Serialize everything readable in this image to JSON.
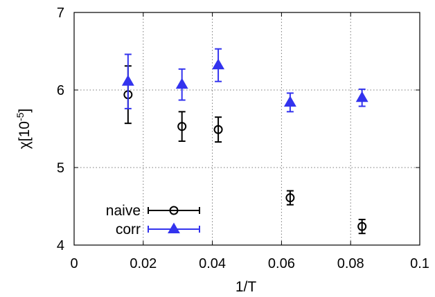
{
  "chart_data": {
    "type": "scatter",
    "xlabel": "1/T",
    "ylabel": "χ[10",
    "ylabel_exp": "-5",
    "ylabel_tail": "]",
    "xlim": [
      0,
      0.1
    ],
    "ylim": [
      4,
      7
    ],
    "xticks": [
      0,
      0.02,
      0.04,
      0.06,
      0.08,
      0.1
    ],
    "xtick_labels": [
      "0",
      "0.02",
      "0.04",
      "0.06",
      "0.08",
      "0.1"
    ],
    "yticks": [
      4,
      5,
      6,
      7
    ],
    "ytick_labels": [
      "4",
      "5",
      "6",
      "7"
    ],
    "grid": true,
    "legend_position": "bottom-left",
    "series": [
      {
        "name": "naive",
        "marker": "circle",
        "color": "#000000",
        "points": [
          {
            "x": 0.0156,
            "y": 5.94,
            "err": 0.37
          },
          {
            "x": 0.0312,
            "y": 5.53,
            "err": 0.19
          },
          {
            "x": 0.0417,
            "y": 5.49,
            "err": 0.16
          },
          {
            "x": 0.0625,
            "y": 4.61,
            "err": 0.09
          },
          {
            "x": 0.0833,
            "y": 4.24,
            "err": 0.09
          }
        ]
      },
      {
        "name": "corr",
        "marker": "triangle",
        "color": "#3333ee",
        "points": [
          {
            "x": 0.0156,
            "y": 6.11,
            "err": 0.35
          },
          {
            "x": 0.0312,
            "y": 6.07,
            "err": 0.2
          },
          {
            "x": 0.0417,
            "y": 6.32,
            "err": 0.21
          },
          {
            "x": 0.0625,
            "y": 5.84,
            "err": 0.12
          },
          {
            "x": 0.0833,
            "y": 5.9,
            "err": 0.11
          }
        ]
      }
    ]
  }
}
